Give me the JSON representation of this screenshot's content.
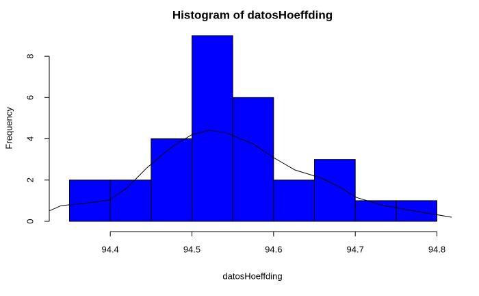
{
  "chart_data": {
    "type": "histogram",
    "title": "Histogram of datosHoeffding",
    "xlabel": "datosHoeffding",
    "ylabel": "Frequency",
    "bins": [
      94.35,
      94.4,
      94.45,
      94.5,
      94.55,
      94.6,
      94.65,
      94.7,
      94.75,
      94.8
    ],
    "values": [
      2,
      2,
      4,
      9,
      6,
      2,
      3,
      1,
      1
    ],
    "color": "#0000ff",
    "xlim": [
      94.332,
      94.818
    ],
    "xticks": [
      94.4,
      94.5,
      94.6,
      94.7,
      94.8
    ],
    "ylim": [
      0,
      9
    ],
    "yticks": [
      0,
      2,
      4,
      6,
      8
    ],
    "curve": {
      "color": "#000000",
      "x": [
        94.325,
        94.34,
        94.374,
        94.399,
        94.42,
        94.445,
        94.475,
        94.5,
        94.521,
        94.542,
        94.575,
        94.6,
        94.626,
        94.659,
        94.684,
        94.701,
        94.735,
        94.768,
        94.818
      ],
      "values": [
        0.5,
        0.76,
        0.9,
        1.03,
        1.6,
        2.6,
        3.6,
        4.2,
        4.42,
        4.29,
        3.75,
        3.09,
        2.49,
        2.09,
        1.59,
        1.16,
        0.76,
        0.53,
        0.2
      ]
    }
  }
}
